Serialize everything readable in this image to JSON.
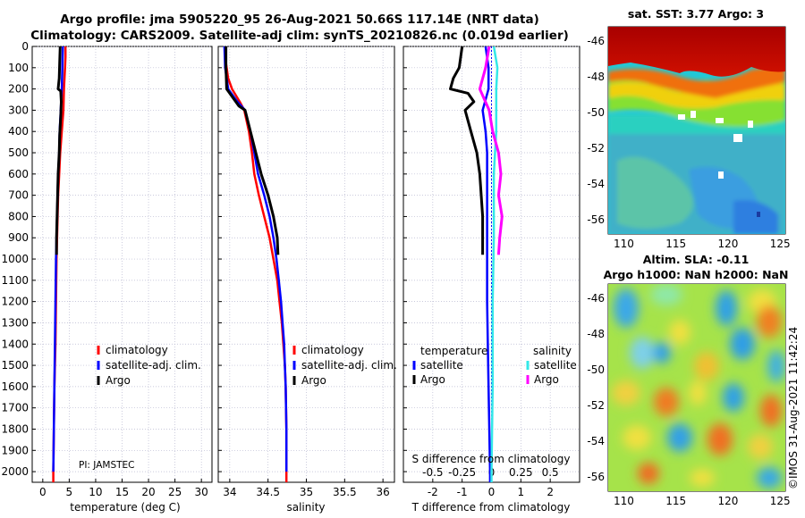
{
  "header": {
    "line1": "Argo profile: jma 5905220_95 26-Aug-2021 50.66S 117.14E (NRT data)",
    "line2": "Climatology: CARS2009. Satellite-adj clim: synTS_20210826.nc (0.019d earlier)"
  },
  "colors": {
    "climatology": "#ff0000",
    "satellite": "#0000ff",
    "argo": "#000000",
    "sat_salinity": "#33e8e8",
    "argo_salinity": "#ff00ff"
  },
  "chart_data": [
    {
      "type": "line",
      "id": "temperature",
      "xlabel": "temperature (deg C)",
      "xlim": [
        -2,
        32
      ],
      "xticks": [
        0,
        5,
        10,
        15,
        20,
        25,
        30
      ],
      "ylim": [
        2050,
        0
      ],
      "yticks": [
        0,
        100,
        200,
        300,
        400,
        500,
        600,
        700,
        800,
        900,
        1000,
        1100,
        1200,
        1300,
        1400,
        1500,
        1600,
        1700,
        1800,
        1900,
        2000
      ],
      "annotation": "PI: JAMSTEC",
      "legend": [
        "climatology",
        "satellite-adj. clim.",
        "Argo"
      ],
      "series": [
        {
          "name": "climatology",
          "points": [
            [
              4.3,
              0
            ],
            [
              4.3,
              50
            ],
            [
              4.2,
              100
            ],
            [
              4.0,
              200
            ],
            [
              3.9,
              300
            ],
            [
              3.6,
              400
            ],
            [
              3.3,
              500
            ],
            [
              3.1,
              600
            ],
            [
              2.9,
              700
            ],
            [
              2.8,
              800
            ],
            [
              2.7,
              900
            ],
            [
              2.6,
              1000
            ],
            [
              2.5,
              1200
            ],
            [
              2.4,
              1400
            ],
            [
              2.2,
              1600
            ],
            [
              2.1,
              1800
            ],
            [
              2.0,
              2000
            ],
            [
              2.0,
              2050
            ]
          ]
        },
        {
          "name": "satellite-adj. clim.",
          "points": [
            [
              3.8,
              0
            ],
            [
              3.7,
              100
            ],
            [
              3.6,
              200
            ],
            [
              3.4,
              300
            ],
            [
              3.2,
              400
            ],
            [
              3.1,
              500
            ],
            [
              2.9,
              600
            ],
            [
              2.8,
              700
            ],
            [
              2.7,
              800
            ],
            [
              2.6,
              900
            ],
            [
              2.5,
              1000
            ],
            [
              2.4,
              1200
            ],
            [
              2.3,
              1400
            ],
            [
              2.2,
              1600
            ],
            [
              2.1,
              1800
            ],
            [
              2.0,
              2000
            ]
          ]
        },
        {
          "name": "Argo",
          "points": [
            [
              3.3,
              0
            ],
            [
              3.2,
              80
            ],
            [
              3.1,
              150
            ],
            [
              2.9,
              200
            ],
            [
              3.4,
              210
            ],
            [
              3.5,
              260
            ],
            [
              3.4,
              330
            ],
            [
              3.2,
              420
            ],
            [
              3.1,
              500
            ],
            [
              2.9,
              600
            ],
            [
              2.8,
              700
            ],
            [
              2.7,
              800
            ],
            [
              2.6,
              900
            ],
            [
              2.6,
              980
            ]
          ]
        }
      ]
    },
    {
      "type": "line",
      "id": "salinity",
      "xlabel": "salinity",
      "xlim": [
        33.85,
        36.15
      ],
      "xticks": [
        34,
        34.5,
        35,
        35.5,
        36
      ],
      "legend": [
        "climatology",
        "satellite-adj. clim.",
        "Argo"
      ],
      "series": [
        {
          "name": "climatology",
          "points": [
            [
              33.94,
              0
            ],
            [
              33.94,
              50
            ],
            [
              33.96,
              100
            ],
            [
              33.98,
              150
            ],
            [
              34.03,
              200
            ],
            [
              34.13,
              260
            ],
            [
              34.19,
              300
            ],
            [
              34.25,
              400
            ],
            [
              34.29,
              500
            ],
            [
              34.32,
              600
            ],
            [
              34.38,
              700
            ],
            [
              34.45,
              800
            ],
            [
              34.52,
              900
            ],
            [
              34.57,
              1000
            ],
            [
              34.62,
              1100
            ],
            [
              34.65,
              1200
            ],
            [
              34.68,
              1300
            ],
            [
              34.7,
              1400
            ],
            [
              34.72,
              1500
            ],
            [
              34.73,
              1600
            ],
            [
              34.74,
              1800
            ],
            [
              34.74,
              2050
            ]
          ]
        },
        {
          "name": "satellite-adj. clim.",
          "points": [
            [
              33.93,
              0
            ],
            [
              33.94,
              100
            ],
            [
              33.98,
              200
            ],
            [
              34.1,
              260
            ],
            [
              34.2,
              300
            ],
            [
              34.27,
              400
            ],
            [
              34.32,
              500
            ],
            [
              34.37,
              600
            ],
            [
              34.45,
              700
            ],
            [
              34.52,
              800
            ],
            [
              34.57,
              900
            ],
            [
              34.61,
              1000
            ],
            [
              34.64,
              1100
            ],
            [
              34.67,
              1200
            ],
            [
              34.69,
              1300
            ],
            [
              34.71,
              1400
            ],
            [
              34.72,
              1500
            ],
            [
              34.73,
              1600
            ],
            [
              34.74,
              1800
            ],
            [
              34.74,
              2000
            ]
          ]
        },
        {
          "name": "Argo",
          "points": [
            [
              33.95,
              0
            ],
            [
              33.95,
              100
            ],
            [
              33.96,
              200
            ],
            [
              34.12,
              280
            ],
            [
              34.2,
              300
            ],
            [
              34.27,
              400
            ],
            [
              34.34,
              500
            ],
            [
              34.41,
              600
            ],
            [
              34.5,
              700
            ],
            [
              34.57,
              800
            ],
            [
              34.62,
              900
            ],
            [
              34.63,
              980
            ]
          ]
        }
      ]
    },
    {
      "type": "line",
      "id": "difference",
      "xlabel": "T difference from climatology",
      "top_axis_label": "S difference from climatology",
      "xlim": [
        -3,
        3
      ],
      "xticks": [
        -2,
        -1,
        0,
        1,
        2
      ],
      "top_xlim": [
        -0.75,
        0.75
      ],
      "top_xticks": [
        "-0.5",
        "-0.25",
        "0",
        "0.25",
        "0.5"
      ],
      "legend_temperature_title": "temperature",
      "legend_salinity_title": "salinity",
      "legend_labels": [
        "satellite",
        "Argo",
        "satellite",
        "Argo"
      ],
      "series": [
        {
          "name": "T satellite",
          "points": [
            [
              -0.2,
              0
            ],
            [
              -0.1,
              100
            ],
            [
              -0.1,
              200
            ],
            [
              -0.3,
              300
            ],
            [
              -0.2,
              400
            ],
            [
              -0.15,
              500
            ],
            [
              -0.15,
              800
            ],
            [
              -0.15,
              1200
            ],
            [
              -0.1,
              1600
            ],
            [
              -0.05,
              2000
            ],
            [
              -0.05,
              2050
            ]
          ]
        },
        {
          "name": "T Argo",
          "points": [
            [
              -1.0,
              0
            ],
            [
              -1.1,
              100
            ],
            [
              -1.3,
              150
            ],
            [
              -1.4,
              200
            ],
            [
              -0.8,
              220
            ],
            [
              -0.6,
              260
            ],
            [
              -0.9,
              300
            ],
            [
              -0.7,
              400
            ],
            [
              -0.5,
              500
            ],
            [
              -0.4,
              600
            ],
            [
              -0.35,
              700
            ],
            [
              -0.3,
              800
            ],
            [
              -0.3,
              900
            ],
            [
              -0.3,
              980
            ]
          ]
        },
        {
          "name": "S satellite",
          "points": [
            [
              0.02,
              0
            ],
            [
              0.05,
              100
            ],
            [
              0.04,
              200
            ],
            [
              0.04,
              400
            ],
            [
              0.02,
              600
            ],
            [
              0.02,
              900
            ],
            [
              0.01,
              1200
            ],
            [
              0.01,
              1600
            ],
            [
              0.0,
              2000
            ],
            [
              0.0,
              2050
            ]
          ]
        },
        {
          "name": "S Argo",
          "points": [
            [
              -0.02,
              0
            ],
            [
              -0.05,
              100
            ],
            [
              -0.1,
              200
            ],
            [
              -0.02,
              300
            ],
            [
              0.01,
              400
            ],
            [
              0.06,
              500
            ],
            [
              0.08,
              600
            ],
            [
              0.06,
              700
            ],
            [
              0.09,
              800
            ],
            [
              0.07,
              900
            ],
            [
              0.06,
              980
            ]
          ]
        }
      ]
    },
    {
      "type": "heatmap",
      "id": "sst",
      "title": "sat. SST: 3.77 Argo: 3",
      "xticks": [
        110,
        115,
        120,
        125
      ],
      "yticks": [
        -46,
        -48,
        -50,
        -52,
        -54,
        -56
      ],
      "xlim": [
        108.5,
        125.5
      ],
      "ylim": [
        -56.8,
        -45.2
      ],
      "marker": [
        117.14,
        -50.66
      ]
    },
    {
      "type": "heatmap",
      "id": "sla",
      "title1": "Altim. SLA: -0.11",
      "title2": "Argo h1000: NaN h2000: NaN",
      "xticks": [
        110,
        115,
        120,
        125
      ],
      "yticks": [
        -46,
        -48,
        -50,
        -52,
        -54,
        -56
      ],
      "xlim": [
        108.5,
        125.5
      ],
      "ylim": [
        -56.8,
        -45.2
      ],
      "marker": [
        117.14,
        -50.66
      ]
    }
  ],
  "stamp": "©IMOS 31-Aug-2021 11:42:24"
}
